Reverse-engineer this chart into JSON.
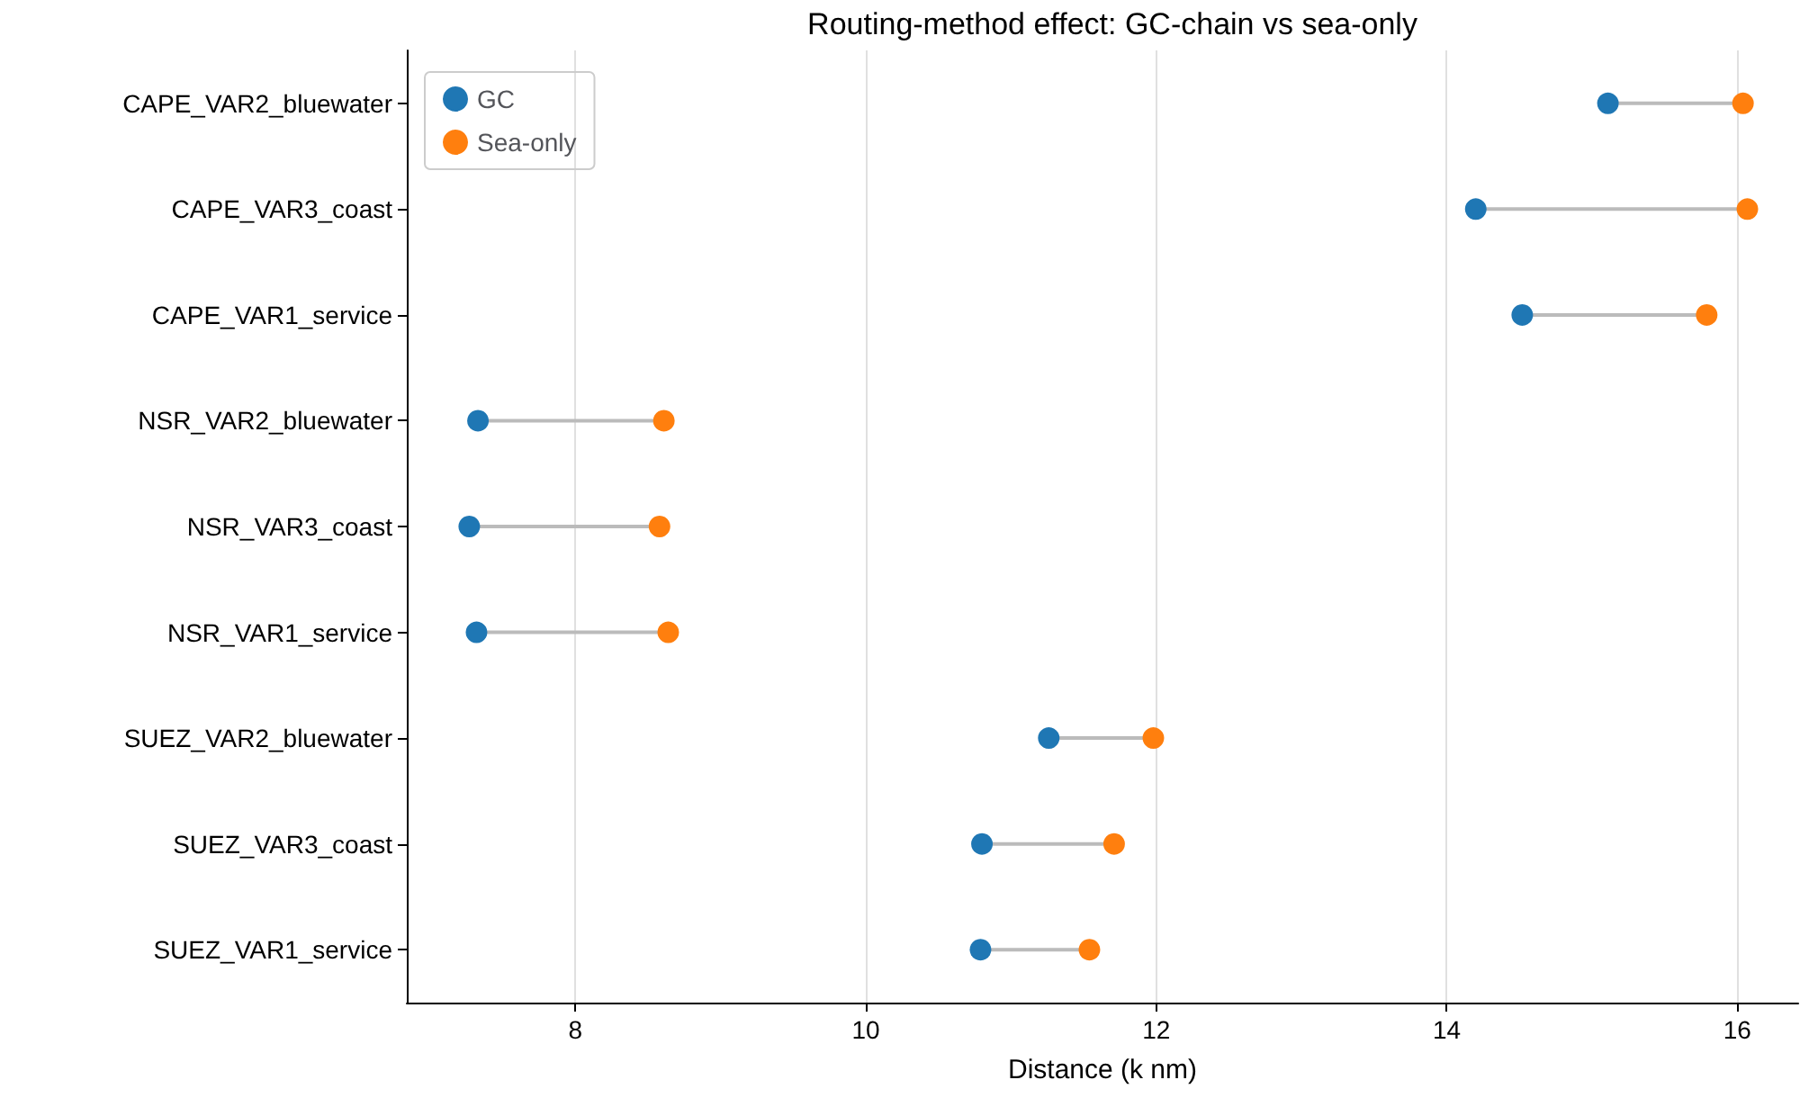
{
  "chart_data": {
    "type": "scatter",
    "orientation": "horizontal",
    "title": "Routing-method effect: GC-chain vs sea-only",
    "xlabel": "Distance (k nm)",
    "categories": [
      "CAPE_VAR2_bluewater",
      "CAPE_VAR3_coast",
      "CAPE_VAR1_service",
      "NSR_VAR2_bluewater",
      "NSR_VAR3_coast",
      "NSR_VAR1_service",
      "SUEZ_VAR2_bluewater",
      "SUEZ_VAR3_coast",
      "SUEZ_VAR1_service"
    ],
    "series": [
      {
        "name": "GC",
        "color": "#1f77b4",
        "values": [
          15.11,
          14.2,
          14.52,
          7.33,
          7.27,
          7.32,
          11.26,
          10.8,
          10.79
        ]
      },
      {
        "name": "Sea-only",
        "color": "#ff7f0e",
        "values": [
          16.04,
          16.07,
          15.79,
          8.61,
          8.58,
          8.64,
          11.98,
          11.71,
          11.54
        ]
      }
    ],
    "xlim": [
      6.84,
      16.42
    ],
    "xticks": [
      8,
      10,
      12,
      14,
      16
    ],
    "grid": "x",
    "legend": "top left",
    "marker": "circle"
  }
}
